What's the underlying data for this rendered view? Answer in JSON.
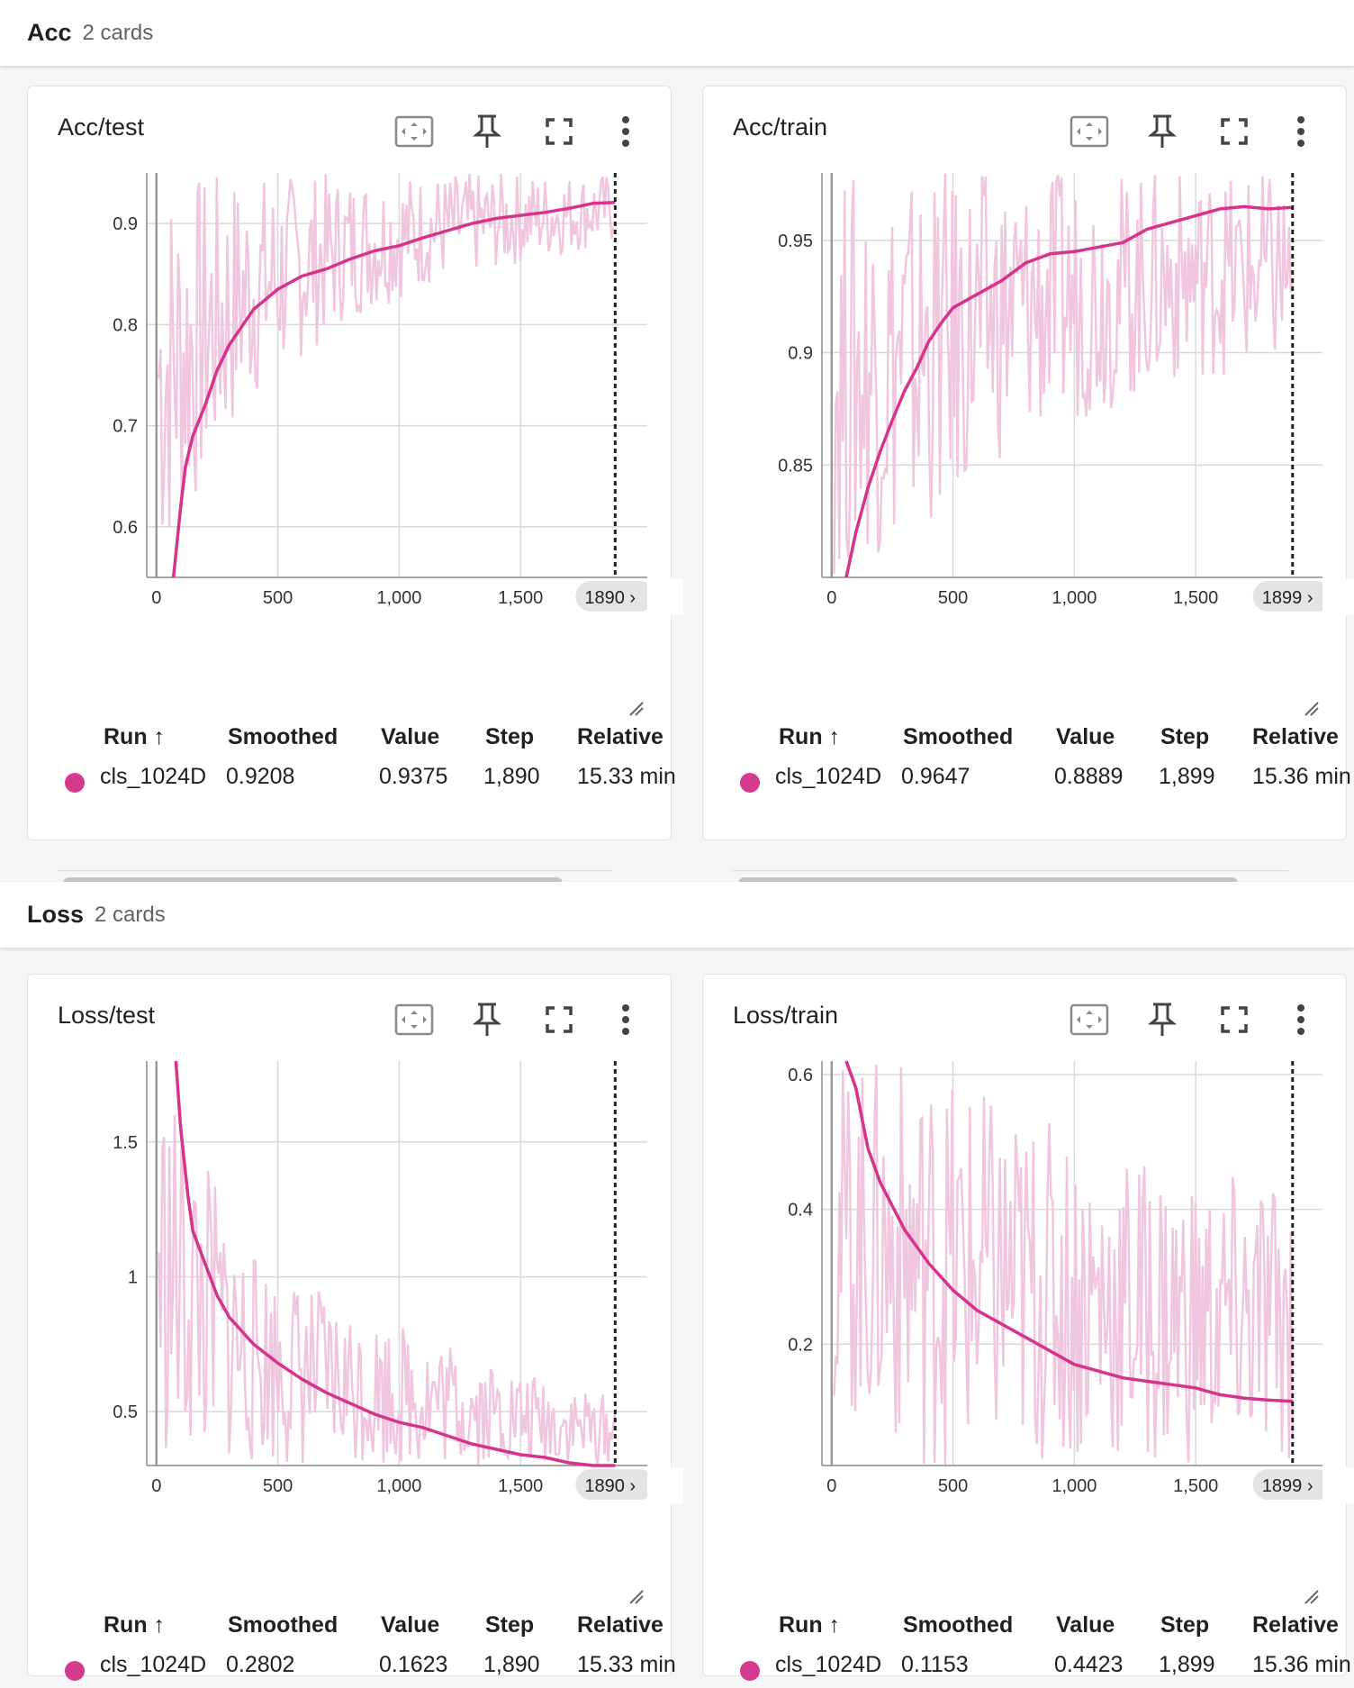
{
  "groups": [
    {
      "title": "Acc",
      "count": "2 cards"
    },
    {
      "title": "Loss",
      "count": "2 cards"
    }
  ],
  "table_headers": {
    "run": "Run ↑",
    "smoothed": "Smoothed",
    "value": "Value",
    "step": "Step",
    "relative": "Relative"
  },
  "x_ticks": [
    "0",
    "500",
    "1,000",
    "1,500"
  ],
  "colors": {
    "smoothed": "#d6338b",
    "raw": "#f0c6df",
    "grid": "#d8d8d8",
    "axis": "#8a8a8a"
  },
  "icons": [
    "fit-domain-icon",
    "pin-icon",
    "fullscreen-icon",
    "more-vert-icon"
  ],
  "cards": [
    {
      "title": "Acc/test",
      "step_label": "1890 ›",
      "run": {
        "name": "cls_1024D",
        "smoothed": "0.9208",
        "value": "0.9375",
        "step": "1,890",
        "relative": "15.33 min"
      },
      "chart_data": {
        "type": "line",
        "x_domain": [
          -40,
          2000
        ],
        "y_domain": [
          0.55,
          0.95
        ],
        "y_ticks": [
          {
            "v": 0.6,
            "label": "0.6"
          },
          {
            "v": 0.7,
            "label": "0.7"
          },
          {
            "v": 0.8,
            "label": "0.8"
          },
          {
            "v": 0.9,
            "label": "0.9"
          }
        ],
        "x_ticks": [
          0,
          500,
          1000,
          1500
        ],
        "cursor_step": 1890,
        "series": [
          {
            "name": "cls_1024D",
            "smoothed": [
              [
                70,
                0.55
              ],
              [
                100,
                0.62
              ],
              [
                120,
                0.66
              ],
              [
                150,
                0.69
              ],
              [
                200,
                0.72
              ],
              [
                250,
                0.755
              ],
              [
                300,
                0.78
              ],
              [
                400,
                0.815
              ],
              [
                500,
                0.835
              ],
              [
                600,
                0.848
              ],
              [
                700,
                0.855
              ],
              [
                800,
                0.865
              ],
              [
                900,
                0.873
              ],
              [
                1000,
                0.878
              ],
              [
                1100,
                0.886
              ],
              [
                1200,
                0.893
              ],
              [
                1300,
                0.9
              ],
              [
                1400,
                0.905
              ],
              [
                1500,
                0.908
              ],
              [
                1600,
                0.911
              ],
              [
                1700,
                0.915
              ],
              [
                1800,
                0.92
              ],
              [
                1890,
                0.9208
              ]
            ],
            "raw_range": {
              "start": 10,
              "end": 1890,
              "low": [
                0.55,
                0.72,
                0.8,
                0.84,
                0.86,
                0.88
              ],
              "high": [
                0.95,
                0.95,
                0.95,
                0.95,
                0.95,
                0.95
              ]
            }
          }
        ]
      }
    },
    {
      "title": "Acc/train",
      "step_label": "1899 ›",
      "run": {
        "name": "cls_1024D",
        "smoothed": "0.9647",
        "value": "0.8889",
        "step": "1,899",
        "relative": "15.36 min"
      },
      "chart_data": {
        "type": "line",
        "x_domain": [
          -40,
          2000
        ],
        "y_domain": [
          0.8,
          0.98
        ],
        "y_ticks": [
          {
            "v": 0.85,
            "label": "0.85"
          },
          {
            "v": 0.9,
            "label": "0.9"
          },
          {
            "v": 0.95,
            "label": "0.95"
          }
        ],
        "x_ticks": [
          0,
          500,
          1000,
          1500
        ],
        "cursor_step": 1899,
        "series": [
          {
            "name": "cls_1024D",
            "smoothed": [
              [
                60,
                0.8
              ],
              [
                100,
                0.82
              ],
              [
                150,
                0.84
              ],
              [
                200,
                0.856
              ],
              [
                250,
                0.87
              ],
              [
                300,
                0.883
              ],
              [
                350,
                0.893
              ],
              [
                400,
                0.905
              ],
              [
                450,
                0.913
              ],
              [
                500,
                0.92
              ],
              [
                600,
                0.926
              ],
              [
                700,
                0.932
              ],
              [
                800,
                0.94
              ],
              [
                900,
                0.944
              ],
              [
                1000,
                0.945
              ],
              [
                1100,
                0.947
              ],
              [
                1200,
                0.949
              ],
              [
                1300,
                0.955
              ],
              [
                1400,
                0.958
              ],
              [
                1500,
                0.961
              ],
              [
                1600,
                0.964
              ],
              [
                1700,
                0.965
              ],
              [
                1800,
                0.964
              ],
              [
                1899,
                0.9647
              ]
            ],
            "raw_range": {
              "start": 10,
              "end": 1899,
              "low": [
                0.8,
                0.82,
                0.86,
                0.875,
                0.89,
                0.89
              ],
              "high": [
                0.98,
                0.98,
                0.98,
                0.98,
                0.98,
                0.98
              ]
            }
          }
        ]
      }
    },
    {
      "title": "Loss/test",
      "step_label": "1890 ›",
      "run": {
        "name": "cls_1024D",
        "smoothed": "0.2802",
        "value": "0.1623",
        "step": "1,890",
        "relative": "15.33 min"
      },
      "chart_data": {
        "type": "line",
        "x_domain": [
          -40,
          2000
        ],
        "y_domain": [
          0.3,
          1.8
        ],
        "y_ticks": [
          {
            "v": 0.5,
            "label": "0.5"
          },
          {
            "v": 1,
            "label": "1"
          },
          {
            "v": 1.5,
            "label": "1.5"
          }
        ],
        "x_ticks": [
          0,
          500,
          1000,
          1500
        ],
        "cursor_step": 1890,
        "series": [
          {
            "name": "cls_1024D",
            "smoothed": [
              [
                80,
                1.8
              ],
              [
                100,
                1.55
              ],
              [
                130,
                1.3
              ],
              [
                150,
                1.17
              ],
              [
                200,
                1.05
              ],
              [
                250,
                0.93
              ],
              [
                300,
                0.85
              ],
              [
                400,
                0.75
              ],
              [
                500,
                0.68
              ],
              [
                600,
                0.62
              ],
              [
                700,
                0.57
              ],
              [
                800,
                0.53
              ],
              [
                900,
                0.49
              ],
              [
                1000,
                0.46
              ],
              [
                1100,
                0.44
              ],
              [
                1200,
                0.41
              ],
              [
                1300,
                0.38
              ],
              [
                1400,
                0.36
              ],
              [
                1500,
                0.34
              ],
              [
                1600,
                0.33
              ],
              [
                1700,
                0.31
              ],
              [
                1800,
                0.29
              ],
              [
                1890,
                0.2802
              ]
            ],
            "raw_range": {
              "start": 10,
              "end": 1890,
              "low": [
                0.3,
                0.3,
                0.3,
                0.3,
                0.3,
                0.3
              ],
              "high": [
                1.8,
                1.1,
                0.9,
                0.8,
                0.65,
                0.55
              ]
            }
          }
        ]
      }
    },
    {
      "title": "Loss/train",
      "step_label": "1899 ›",
      "run": {
        "name": "cls_1024D",
        "smoothed": "0.1153",
        "value": "0.4423",
        "step": "1,899",
        "relative": "15.36 min"
      },
      "chart_data": {
        "type": "line",
        "x_domain": [
          -40,
          2000
        ],
        "y_domain": [
          0.02,
          0.62
        ],
        "y_ticks": [
          {
            "v": 0.2,
            "label": "0.2"
          },
          {
            "v": 0.4,
            "label": "0.4"
          },
          {
            "v": 0.6,
            "label": "0.6"
          }
        ],
        "x_ticks": [
          0,
          500,
          1000,
          1500
        ],
        "cursor_step": 1899,
        "series": [
          {
            "name": "cls_1024D",
            "smoothed": [
              [
                60,
                0.62
              ],
              [
                100,
                0.58
              ],
              [
                150,
                0.49
              ],
              [
                200,
                0.44
              ],
              [
                300,
                0.37
              ],
              [
                400,
                0.32
              ],
              [
                500,
                0.28
              ],
              [
                600,
                0.25
              ],
              [
                700,
                0.23
              ],
              [
                800,
                0.21
              ],
              [
                900,
                0.19
              ],
              [
                1000,
                0.17
              ],
              [
                1100,
                0.16
              ],
              [
                1200,
                0.15
              ],
              [
                1300,
                0.145
              ],
              [
                1400,
                0.14
              ],
              [
                1500,
                0.135
              ],
              [
                1600,
                0.125
              ],
              [
                1700,
                0.12
              ],
              [
                1800,
                0.117
              ],
              [
                1899,
                0.1153
              ]
            ],
            "raw_range": {
              "start": 10,
              "end": 1899,
              "low": [
                0.1,
                0.02,
                0.02,
                0.02,
                0.02,
                0.02
              ],
              "high": [
                0.62,
                0.62,
                0.55,
                0.5,
                0.45,
                0.45
              ]
            }
          }
        ]
      }
    }
  ]
}
